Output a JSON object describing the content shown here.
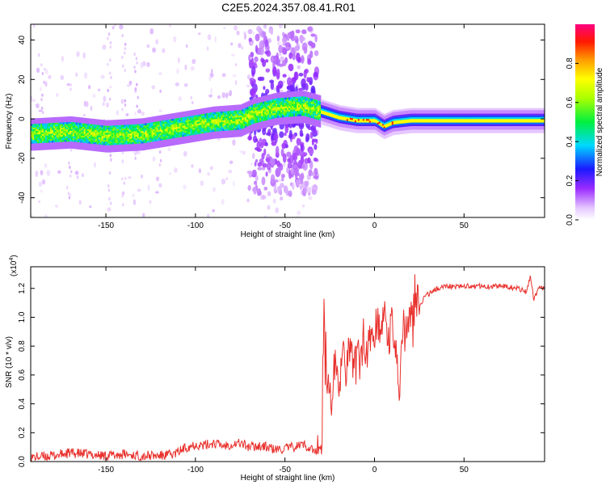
{
  "title": "C2E5.2024.357.08.41.R01",
  "chart_data": [
    {
      "type": "heatmap",
      "xlabel": "Height of straight line (km)",
      "ylabel": "Frequency (Hz)",
      "xlim": [
        -192,
        95
      ],
      "ylim": [
        -50,
        48
      ],
      "xticks": [
        -150,
        -100,
        -50,
        0,
        50
      ],
      "yticks": [
        -40,
        -20,
        0,
        20,
        40
      ],
      "colorbar": {
        "label": "Normalized spectral amplitude",
        "range": [
          0,
          1
        ],
        "ticks": [
          "0.0",
          "0.2",
          "0.4",
          "0.6",
          "0.8"
        ],
        "tick_values": [
          0,
          0.2,
          0.4,
          0.6,
          0.8
        ]
      },
      "ridge": {
        "description_points": [
          [
            -190,
            -7
          ],
          [
            -170,
            -6
          ],
          [
            -150,
            -8
          ],
          [
            -130,
            -7
          ],
          [
            -110,
            -4
          ],
          [
            -90,
            -1
          ],
          [
            -75,
            0
          ],
          [
            -68,
            3
          ],
          [
            -55,
            6
          ],
          [
            -40,
            7
          ],
          [
            -32,
            5
          ],
          [
            -20,
            1.5
          ],
          [
            -10,
            0
          ],
          [
            0,
            0
          ],
          [
            5,
            -3
          ],
          [
            10,
            -1
          ],
          [
            20,
            0
          ],
          [
            50,
            0
          ],
          [
            92,
            0
          ]
        ]
      }
    },
    {
      "type": "line",
      "xlabel": "Height of straight line (km)",
      "ylabel": "SNR (10 * v/v)",
      "scale_label": "(x10",
      "scale_exp": "4",
      "scale_close": ")",
      "xlim": [
        -192,
        95
      ],
      "ylim": [
        0,
        1.35
      ],
      "xticks": [
        -150,
        -100,
        -50,
        0,
        50
      ],
      "yticks": [
        "0.0",
        "0.2",
        "0.4",
        "0.6",
        "0.8",
        "1.0",
        "1.2"
      ],
      "ytick_values": [
        0,
        0.2,
        0.4,
        0.6,
        0.8,
        1.0,
        1.2
      ],
      "series": [
        {
          "color": "#e8302c",
          "x": [
            -190,
            -180,
            -170,
            -160,
            -150,
            -140,
            -130,
            -120,
            -112,
            -105,
            -100,
            -95,
            -90,
            -85,
            -80,
            -75,
            -70,
            -65,
            -60,
            -55,
            -50,
            -45,
            -40,
            -35,
            -32,
            -30,
            -28,
            -26,
            -24,
            -22,
            -20,
            -18,
            -16,
            -14,
            -12,
            -10,
            -8,
            -6,
            -4,
            -2,
            0,
            2,
            4,
            6,
            8,
            10,
            12,
            14,
            16,
            18,
            20,
            22,
            24,
            26,
            28,
            30,
            35,
            40,
            45,
            50,
            55,
            60,
            65,
            70,
            75,
            80,
            85,
            87,
            89,
            92
          ],
          "y": [
            0.03,
            0.04,
            0.06,
            0.05,
            0.04,
            0.05,
            0.04,
            0.04,
            0.05,
            0.1,
            0.12,
            0.11,
            0.13,
            0.11,
            0.12,
            0.13,
            0.1,
            0.11,
            0.1,
            0.08,
            0.09,
            0.1,
            0.12,
            0.09,
            0.05,
            0.12,
            0.35,
            0.55,
            0.45,
            0.7,
            0.5,
            0.75,
            0.62,
            0.8,
            0.65,
            0.78,
            0.7,
            0.88,
            0.75,
            0.92,
            0.85,
            0.98,
            0.9,
            1.02,
            0.85,
            0.98,
            0.75,
            0.45,
            0.95,
            1.0,
            0.98,
            1.05,
            1.1,
            1.08,
            1.15,
            1.16,
            1.2,
            1.22,
            1.21,
            1.22,
            1.21,
            1.22,
            1.21,
            1.22,
            1.21,
            1.2,
            1.18,
            1.28,
            1.12,
            1.2
          ]
        }
      ]
    }
  ]
}
